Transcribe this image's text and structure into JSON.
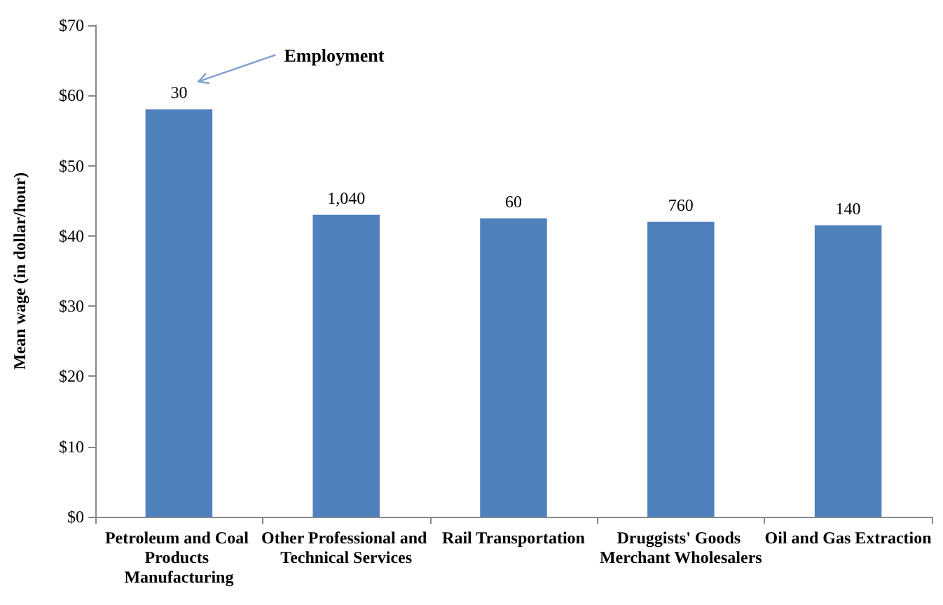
{
  "chart_data": {
    "type": "bar",
    "ylabel": "Mean wage (in dollar/hour)",
    "categories": [
      "Petroleum and Coal Products Manufacturing",
      "Other Professional and Technical Services",
      "Rail Transportation",
      "Druggists' Goods Merchant Wholesalers",
      "Oil and Gas Extraction"
    ],
    "values": [
      58,
      43,
      42.5,
      42,
      41.5
    ],
    "color": "#4f81bd",
    "ylim": [
      0,
      70
    ],
    "yticks": [
      {
        "value": 0,
        "label": "$0"
      },
      {
        "value": 10,
        "label": "$10"
      },
      {
        "value": 20,
        "label": "$20"
      },
      {
        "value": 30,
        "label": "$30"
      },
      {
        "value": 40,
        "label": "$40"
      },
      {
        "value": 50,
        "label": "$50"
      },
      {
        "value": 60,
        "label": "$60"
      },
      {
        "value": 70,
        "label": "$70"
      }
    ],
    "grid": false,
    "annotations": [
      {
        "text": "30",
        "x": "Petroleum and Coal Products Manufacturing",
        "y": 58
      },
      {
        "text": "1,040",
        "x": "Other Professional and Technical Services",
        "y": 43
      },
      {
        "text": "60",
        "x": "Rail Transportation",
        "y": 42.5
      },
      {
        "text": "760",
        "x": "Druggists' Goods Merchant Wholesalers",
        "y": 42
      },
      {
        "text": "140",
        "x": "Oil and Gas Extraction",
        "y": 41.5
      },
      "Employment"
    ]
  }
}
